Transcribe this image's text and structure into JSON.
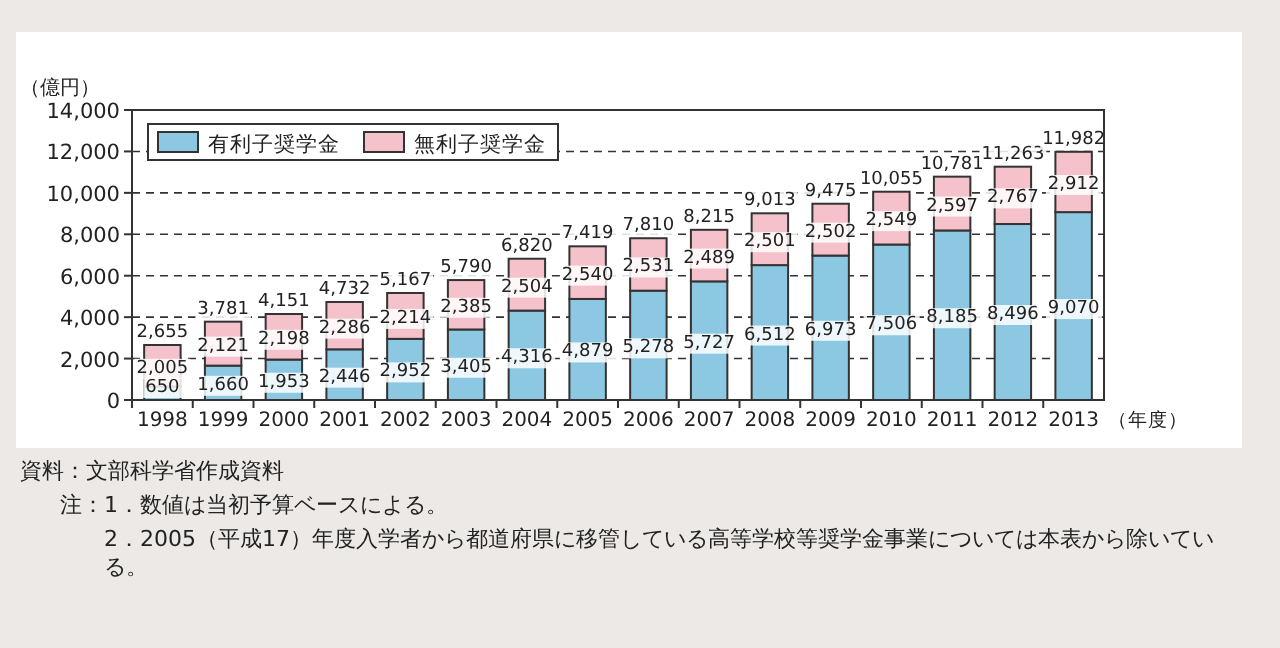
{
  "chart_data": {
    "type": "bar",
    "stacked": true,
    "categories": [
      "1998",
      "1999",
      "2000",
      "2001",
      "2002",
      "2003",
      "2004",
      "2005",
      "2006",
      "2007",
      "2008",
      "2009",
      "2010",
      "2011",
      "2012",
      "2013"
    ],
    "series": [
      {
        "name": "有利子奨学金",
        "color": "#8dc8e2",
        "values": [
          650,
          1660,
          1953,
          2446,
          2952,
          3405,
          4316,
          4879,
          5278,
          5727,
          6512,
          6973,
          7506,
          8185,
          8496,
          9070
        ],
        "value_labels": [
          "650",
          "1,660",
          "1,953",
          "2,446",
          "2,952",
          "3,405",
          "4,316",
          "4,879",
          "5,278",
          "5,727",
          "6,512",
          "6,973",
          "7,506",
          "8,185",
          "8,496",
          "9,070"
        ]
      },
      {
        "name": "無利子奨学金",
        "color": "#f5c1ca",
        "values": [
          2005,
          2121,
          2198,
          2286,
          2214,
          2385,
          2504,
          2540,
          2531,
          2489,
          2501,
          2502,
          2549,
          2597,
          2767,
          2912
        ],
        "value_labels": [
          "2,005",
          "2,121",
          "2,198",
          "2,286",
          "2,214",
          "2,385",
          "2,504",
          "2,540",
          "2,531",
          "2,489",
          "2,501",
          "2,502",
          "2,549",
          "2,597",
          "2,767",
          "2,912"
        ]
      }
    ],
    "totals": [
      "2,655",
      "3,781",
      "4,151",
      "4,732",
      "5,167",
      "5,790",
      "6,820",
      "7,419",
      "7,810",
      "8,215",
      "9,013",
      "9,475",
      "10,055",
      "10,781",
      "11,263",
      "11,982"
    ],
    "ylim": [
      0,
      14000
    ],
    "yticks": [
      {
        "value": 0,
        "label": "0"
      },
      {
        "value": 2000,
        "label": "2,000"
      },
      {
        "value": 4000,
        "label": "4,000"
      },
      {
        "value": 6000,
        "label": "6,000"
      },
      {
        "value": 8000,
        "label": "8,000"
      },
      {
        "value": 10000,
        "label": "10,000"
      },
      {
        "value": 12000,
        "label": "12,000"
      },
      {
        "value": 14000,
        "label": "14,000"
      }
    ],
    "grid": "y",
    "legend": "top left",
    "ylabel": "（億円）",
    "xlabel": "（年度）",
    "annotations": [
      "資料：文部科学省作成資料",
      "注：1．数値は当初予算ベースによる。",
      "2．2005（平成17）年度入学者から都道府県に移管している高等学校等奨学金事業については本表から除いている。"
    ]
  }
}
